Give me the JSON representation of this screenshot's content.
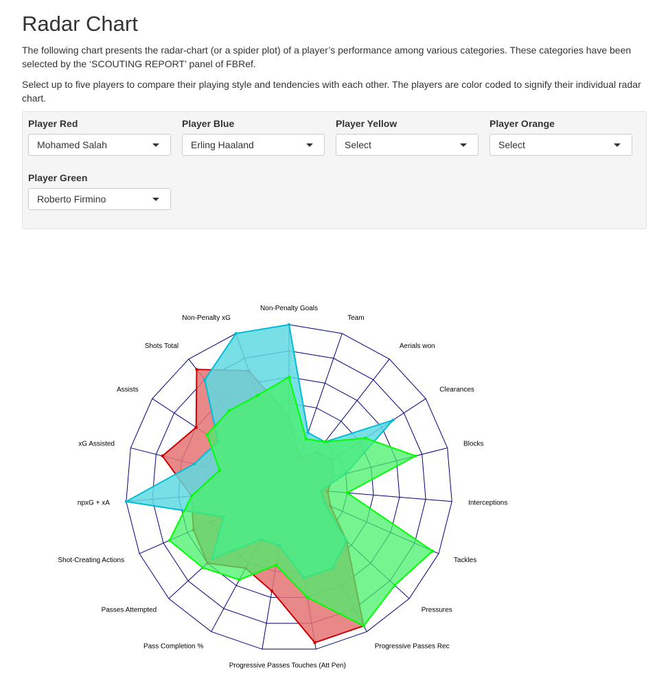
{
  "page": {
    "title": "Radar Chart",
    "intro1": "The following chart presents the radar-chart (or a spider plot) of a player’s performance among various categories. These categories have been selected by the ‘SCOUTING REPORT’ panel of FBRef.",
    "intro2": "Select up to five players to compare their playing style and tendencies with each other. The players are color coded to signify their individual radar chart."
  },
  "selectors": [
    {
      "label": "Player Red",
      "value": "Mohamed Salah"
    },
    {
      "label": "Player Blue",
      "value": "Erling Haaland"
    },
    {
      "label": "Player Yellow",
      "value": "Select"
    },
    {
      "label": "Player Orange",
      "value": "Select"
    },
    {
      "label": "Player Green",
      "value": "Roberto Firmino"
    }
  ],
  "chart_data": {
    "type": "radar",
    "categories": [
      "Non-Penalty Goals",
      "Team",
      "Aerials won",
      "Clearances",
      "Blocks",
      "Interceptions",
      "Tackles",
      "Pressures",
      "Progressive Passes Rec",
      "Touches (Att Pen)",
      "Progressive Passes",
      "Pass Completion %",
      "Passes Attempted",
      "Shot-Creating Actions",
      "npxG + xA",
      "xG Assisted",
      "Assists",
      "Shots Total",
      "Non-Penalty xG"
    ],
    "rlim": [
      0,
      100
    ],
    "grid_rings": 5,
    "series": [
      {
        "color": "#cc0000",
        "fill": "#e57373",
        "values": [
          30,
          0,
          10,
          15,
          10,
          5,
          10,
          35,
          95,
          95,
          55,
          45,
          60,
          55,
          50,
          75,
          60,
          90,
          70
        ]
      },
      {
        "color": "#00bcd4",
        "fill": "#5fd9e1",
        "values": [
          100,
          20,
          20,
          70,
          20,
          0,
          5,
          35,
          45,
          45,
          20,
          20,
          55,
          30,
          100,
          50,
          40,
          80,
          100
        ]
      },
      {
        "color": "#00ff00",
        "fill": "#48f06a",
        "values": [
          60,
          15,
          20,
          45,
          75,
          20,
          95,
          85,
          95,
          60,
          35,
          55,
          65,
          75,
          50,
          30,
          50,
          50,
          50
        ]
      }
    ]
  }
}
